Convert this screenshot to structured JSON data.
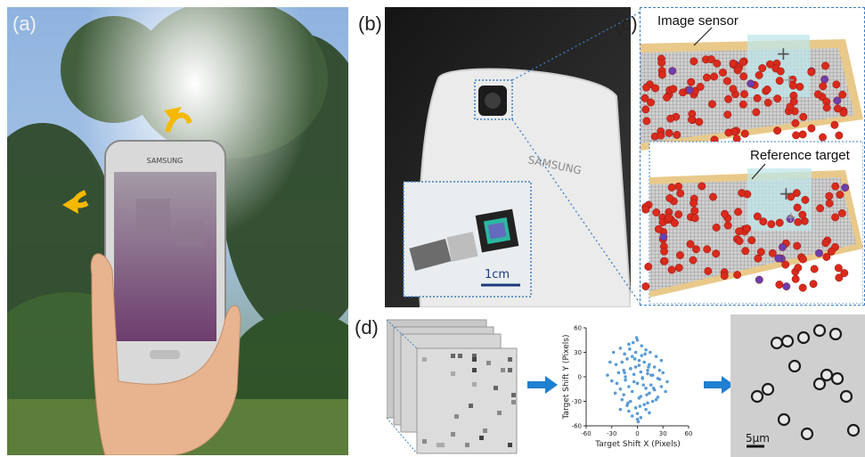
{
  "panel_labels": {
    "a": "(a)",
    "b": "(b)",
    "c": "(c)",
    "d": "(d)"
  },
  "panel_b": {
    "phone_brand": "SAMSUNG",
    "scale_bar": "1cm"
  },
  "panel_a": {
    "phone_brand": "SAMSUNG"
  },
  "panel_c": {
    "annotation_top": "Image sensor",
    "annotation_bottom": "Reference target"
  },
  "panel_d": {
    "scale_bar": "5μm"
  },
  "colors": {
    "arrow": "#f5b800",
    "dotted_line": "#3d7fc4",
    "scatter": "#5b9bd5",
    "blue_arrow": "#1f7fd0",
    "bead": "#d92a1c",
    "sensor_frame": "#e8c98a",
    "ref_target": "#bfe6ea"
  },
  "chart_data": {
    "type": "scatter",
    "xlabel": "Target Shift X (Pixels)",
    "ylabel": "Target Shift Y (Pixels)",
    "xlim": [
      -60,
      60
    ],
    "ylim": [
      -60,
      60
    ],
    "xticks": [
      "-60",
      "-30",
      "0",
      "30",
      "60"
    ],
    "yticks": [
      "60",
      "30",
      "0",
      "-30",
      "-60"
    ],
    "x": [
      -28,
      -20,
      -15,
      -10,
      -5,
      0,
      5,
      10,
      15,
      22,
      28,
      -25,
      -18,
      -12,
      -6,
      2,
      8,
      14,
      20,
      26,
      -22,
      -16,
      -8,
      -2,
      4,
      12,
      18,
      24,
      30,
      -30,
      -24,
      -14,
      -4,
      6,
      16,
      28,
      -20,
      -10,
      0,
      10,
      20,
      -26,
      -16,
      -6,
      4,
      14,
      24,
      -18,
      -8,
      2,
      12,
      22,
      -12,
      -2,
      8,
      18,
      -14,
      -4,
      6,
      16,
      26,
      -20,
      -10,
      0,
      10,
      -6,
      4,
      14,
      -8,
      2,
      12,
      0,
      -3,
      5,
      -35,
      35,
      -32,
      33,
      -2,
      3,
      7,
      -9,
      11,
      -15,
      19,
      1,
      -1,
      9,
      -11,
      13
    ],
    "y": [
      30,
      35,
      28,
      40,
      42,
      45,
      38,
      33,
      30,
      25,
      20,
      15,
      18,
      22,
      25,
      20,
      18,
      15,
      12,
      8,
      5,
      8,
      10,
      12,
      6,
      4,
      2,
      -2,
      5,
      -5,
      -8,
      -4,
      -6,
      -2,
      -10,
      -12,
      -15,
      -12,
      -8,
      -14,
      -16,
      -20,
      -22,
      -18,
      -24,
      -20,
      -25,
      -28,
      -30,
      -26,
      -32,
      -28,
      -35,
      -38,
      -34,
      -30,
      0,
      3,
      -1,
      2,
      -3,
      -40,
      -42,
      -45,
      -40,
      -48,
      -50,
      -44,
      10,
      14,
      8,
      -52,
      22,
      26,
      2,
      -6,
      18,
      -18,
      30,
      -36,
      -10,
      34,
      -22,
      5,
      -14,
      -55,
      48,
      28,
      -32,
      12
    ]
  }
}
